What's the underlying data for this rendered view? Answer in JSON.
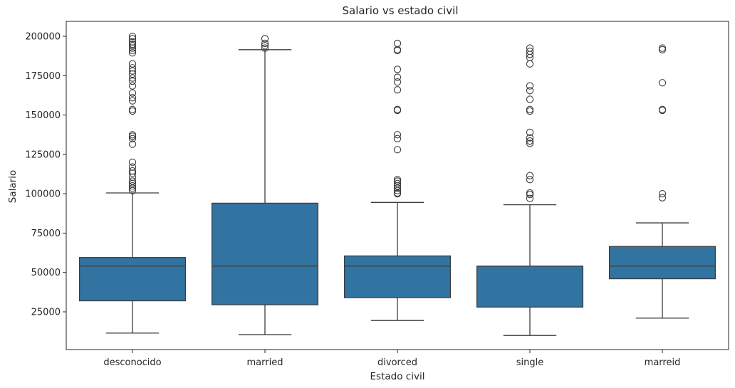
{
  "chart_data": {
    "type": "box",
    "title": "Salario vs estado civil",
    "xlabel": "Estado civil",
    "ylabel": "Salario",
    "ylim": [
      0,
      207500
    ],
    "yticks": [
      25000,
      50000,
      75000,
      100000,
      125000,
      150000,
      175000,
      200000
    ],
    "ytick_labels": [
      "25000",
      "50000",
      "75000",
      "100000",
      "125000",
      "150000",
      "175000",
      "200000"
    ],
    "box_color": "#3274a1",
    "line_color": "#3d3d3d",
    "grid": false,
    "categories": [
      "desconocido",
      "married",
      "divorced",
      "single",
      "marreid"
    ],
    "boxes": [
      {
        "category": "desconocido",
        "whisker_low": 11500,
        "q1": 32000,
        "median": 54000,
        "q3": 59500,
        "whisker_high": 100500,
        "outliers": [
          102000,
          103500,
          105000,
          106500,
          108000,
          110500,
          113000,
          114500,
          117000,
          120000,
          131500,
          135000,
          136500,
          137500,
          152500,
          153500,
          159000,
          161000,
          164000,
          168500,
          171500,
          173500,
          176000,
          178000,
          180000,
          182500,
          189500,
          191000,
          192500,
          194000,
          195000,
          196500,
          198500,
          200000
        ]
      },
      {
        "category": "married",
        "whisker_low": 10500,
        "q1": 29500,
        "median": 54000,
        "q3": 94000,
        "whisker_high": 191500,
        "outliers": [
          192500,
          194000,
          195500,
          198500
        ]
      },
      {
        "category": "divorced",
        "whisker_low": 19500,
        "q1": 34000,
        "median": 54000,
        "q3": 60500,
        "whisker_high": 94500,
        "outliers": [
          100000,
          100500,
          102000,
          103500,
          105000,
          106500,
          108000,
          109000,
          128000,
          135000,
          137500,
          153000,
          153500,
          166000,
          171000,
          174000,
          179000,
          191000,
          191500,
          195500
        ]
      },
      {
        "category": "single",
        "whisker_low": 10000,
        "q1": 28000,
        "median": 54000,
        "q3": 54000,
        "whisker_high": 93000,
        "outliers": [
          97000,
          99500,
          100500,
          109000,
          111500,
          132000,
          133500,
          135500,
          139000,
          152500,
          153500,
          160000,
          165500,
          168500,
          182500,
          186500,
          188500,
          190500,
          192500
        ]
      },
      {
        "category": "marreid",
        "whisker_low": 21000,
        "q1": 46000,
        "median": 54000,
        "q3": 66500,
        "whisker_high": 81500,
        "outliers": [
          97500,
          100000,
          153000,
          153500,
          170500,
          191500,
          192500
        ]
      }
    ]
  }
}
